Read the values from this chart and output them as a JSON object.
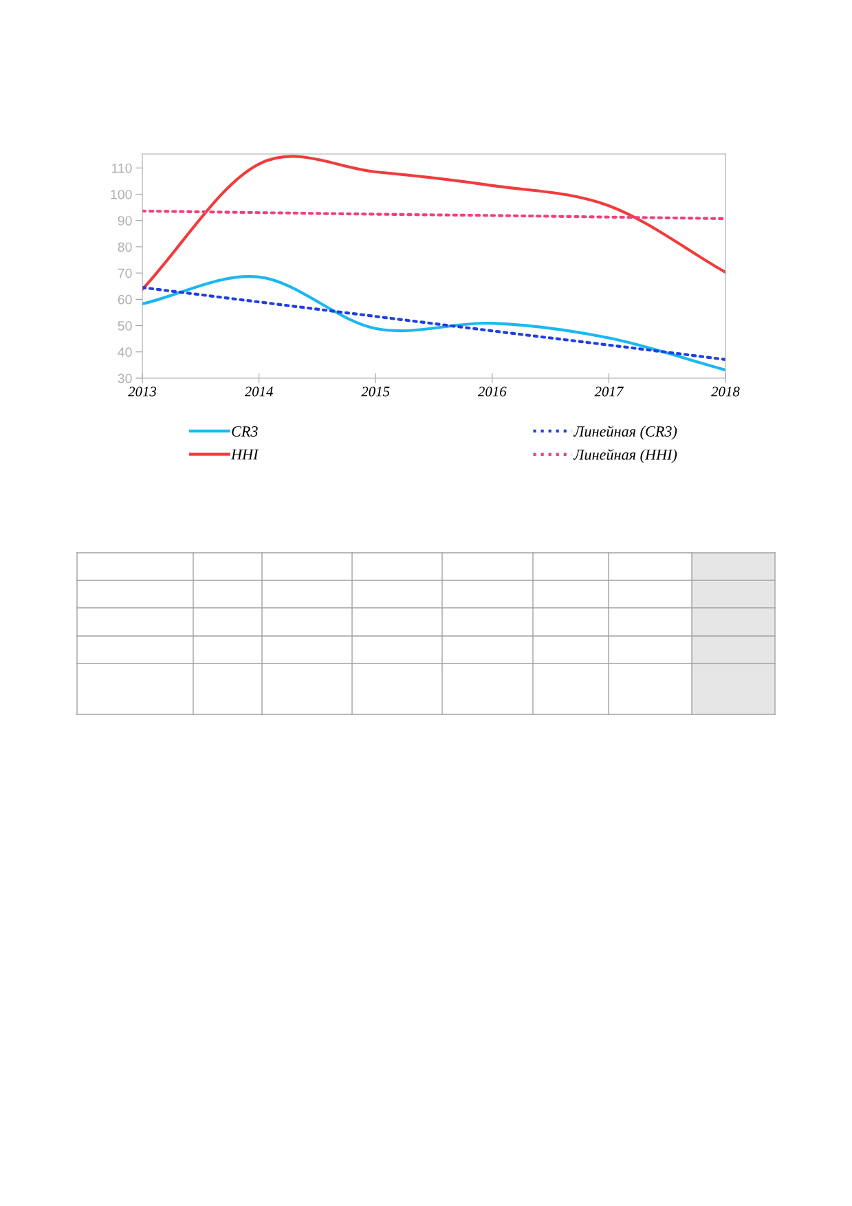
{
  "chart_data": {
    "type": "line",
    "x": [
      2013,
      2014,
      2015,
      2016,
      2017,
      2018
    ],
    "series": [
      {
        "name": "CR3",
        "color": "#1ab8f0",
        "values": [
          58.3,
          68.5,
          48.9,
          50.9,
          45.3,
          33.1
        ]
      },
      {
        "name": "HHI",
        "color": "#f03c3c",
        "values": [
          63.8,
          111.5,
          108.5,
          103.3,
          95.6,
          70.3
        ]
      },
      {
        "name": "Линейная (CR3)",
        "color": "#1f3fe0",
        "values": [
          64.5,
          59.0,
          53.5,
          48.0,
          42.6,
          37.1
        ],
        "line_style": "dotted"
      },
      {
        "name": "Линейная (HHI)",
        "color": "#f0407a",
        "values": [
          93.6,
          93.0,
          92.4,
          91.9,
          91.3,
          90.7
        ],
        "line_style": "dotted"
      }
    ],
    "xlim": [
      2013,
      2018
    ],
    "xticks": [
      2013,
      2014,
      2015,
      2016,
      2017,
      2018
    ],
    "ylim": [
      30,
      115.3
    ],
    "yticks": [
      30,
      40,
      50,
      60,
      70,
      80,
      90,
      100,
      110
    ],
    "grid": false,
    "legend": "bottom",
    "marker": "none",
    "line_style": "solid"
  }
}
